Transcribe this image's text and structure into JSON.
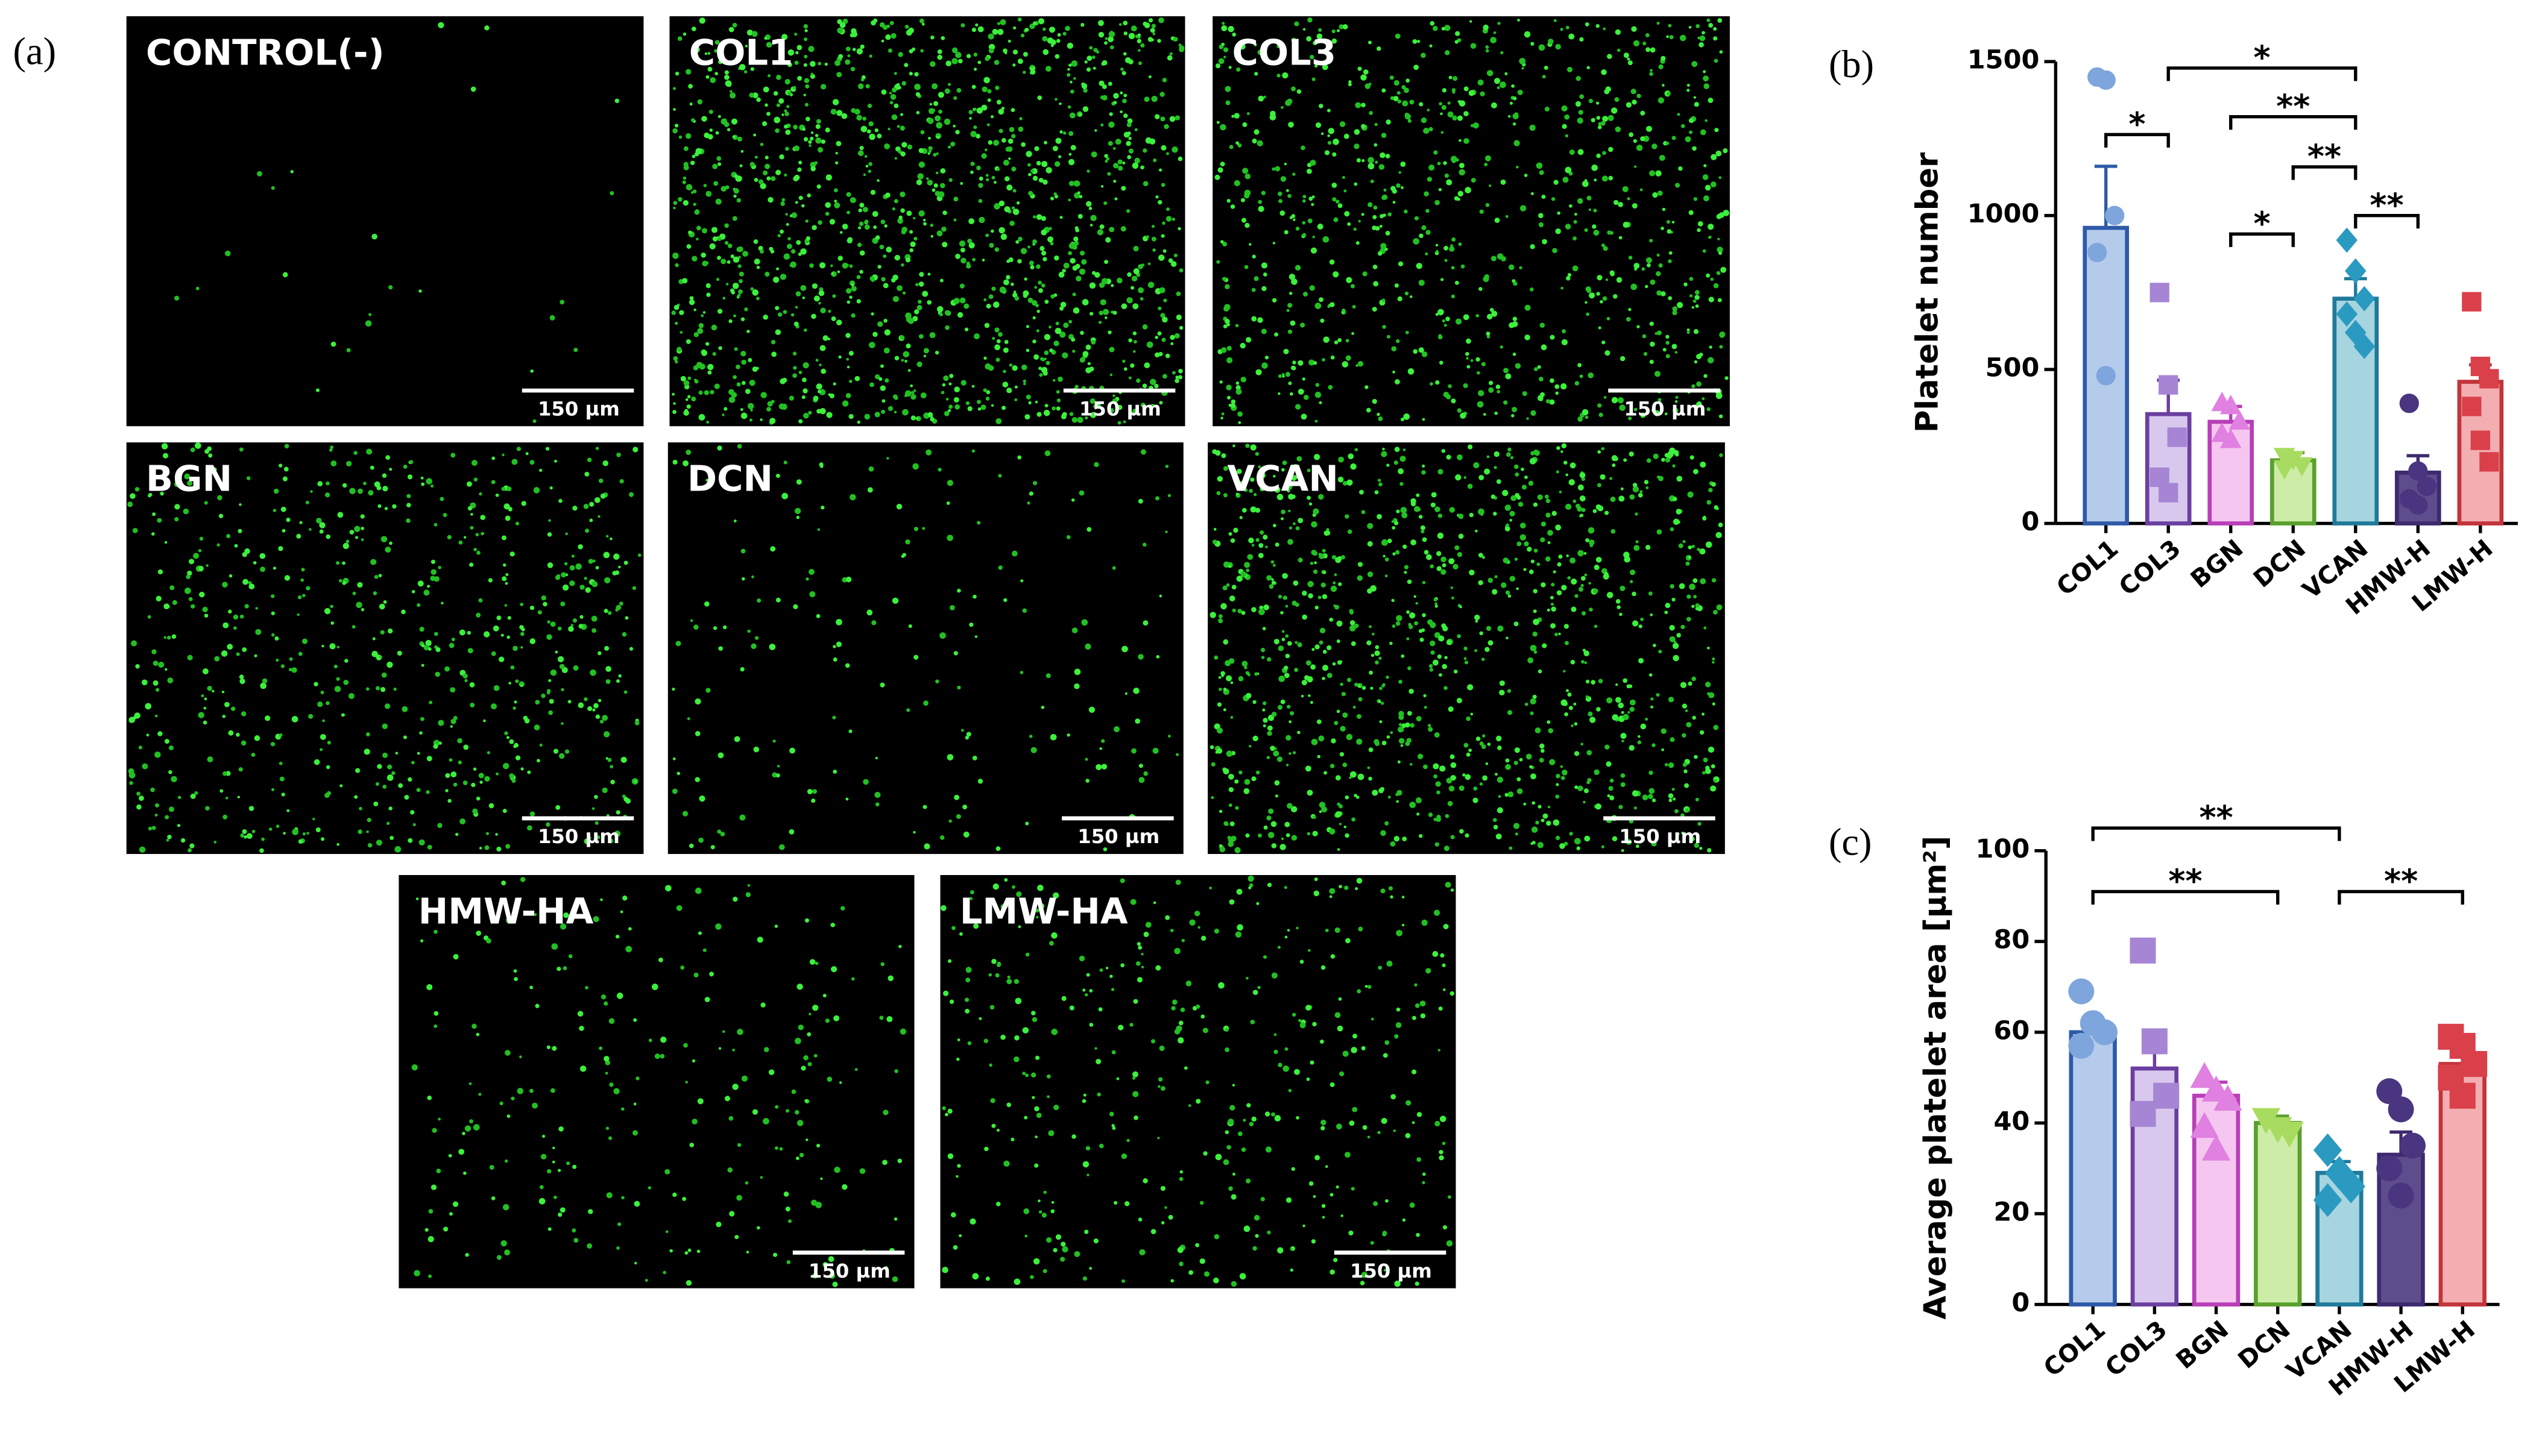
{
  "panel_a": {
    "label": "(a)",
    "images": [
      {
        "label": "CONTROL(-)",
        "scale_bar": "150 µm"
      },
      {
        "label": "COL1",
        "scale_bar": "150 µm"
      },
      {
        "label": "COL3",
        "scale_bar": "150 µm"
      },
      {
        "label": "BGN",
        "scale_bar": "150 µm"
      },
      {
        "label": "DCN",
        "scale_bar": "150 µm"
      },
      {
        "label": "VCAN",
        "scale_bar": "150 µm"
      },
      {
        "label": "HMW-HA",
        "scale_bar": "150 µm"
      },
      {
        "label": "LMW-HA",
        "scale_bar": "150 µm"
      }
    ]
  },
  "chart_data": [
    {
      "type": "bar",
      "label": "(b)",
      "y_label": "Platelet number",
      "categories": [
        "COL1",
        "COL3",
        "BGN",
        "DCN",
        "VCAN",
        "HMW-H",
        "LMW-H"
      ],
      "values": [
        960,
        355,
        330,
        205,
        730,
        165,
        460
      ],
      "errors": [
        200,
        110,
        50,
        25,
        65,
        55,
        55
      ],
      "points": [
        [
          1450,
          1440,
          1000,
          880,
          480
        ],
        [
          750,
          450,
          280,
          150,
          100
        ],
        [
          390,
          380,
          330,
          290,
          270
        ],
        [
          220,
          210,
          190,
          180
        ],
        [
          920,
          820,
          730,
          680,
          620,
          575
        ],
        [
          390,
          170,
          120,
          80,
          60
        ],
        [
          720,
          510,
          470,
          380,
          270,
          200
        ]
      ],
      "colors": [
        "#2e5aa8",
        "#6b3fa0",
        "#b83fb8",
        "#5aa02e",
        "#1f7a9a",
        "#3e2a6e",
        "#c2353b"
      ],
      "fill_colors": [
        "#b5cbec",
        "#d9c8ee",
        "#f5c6f0",
        "#cdeca8",
        "#a6d4df",
        "#5e4d8c",
        "#f2aeb0"
      ],
      "point_colors": [
        "#7ea6dc",
        "#a585d4",
        "#e080e0",
        "#a8dc60",
        "#2a9ac0",
        "#4a3580",
        "#d9404a"
      ],
      "markers": [
        "circle",
        "square",
        "triangle",
        "triangle-down",
        "diamond",
        "circle",
        "square"
      ],
      "ylim": [
        0,
        1500
      ],
      "yticks": [
        0,
        500,
        1000,
        1500
      ],
      "significance": [
        {
          "from": "COL1",
          "to": "COL3",
          "label": "*"
        },
        {
          "from": "COL3",
          "to": "VCAN",
          "label": "*"
        },
        {
          "from": "BGN",
          "to": "VCAN",
          "label": "**"
        },
        {
          "from": "DCN",
          "to": "VCAN",
          "label": "**"
        },
        {
          "from": "BGN",
          "to": "DCN",
          "label": "*"
        },
        {
          "from": "VCAN",
          "to": "HMW-H",
          "label": "**"
        }
      ]
    },
    {
      "type": "bar",
      "label": "(c)",
      "y_label": "Average platelet area  [µm²]",
      "categories": [
        "COL1",
        "COL3",
        "BGN",
        "DCN",
        "VCAN",
        "HMW-H",
        "LMW-H"
      ],
      "values": [
        60,
        52,
        46,
        40,
        29,
        33,
        53
      ],
      "errors": [
        3,
        7,
        3,
        1.5,
        2.5,
        5,
        3
      ],
      "points": [
        [
          69,
          62,
          60,
          57
        ],
        [
          78,
          58,
          46,
          42
        ],
        [
          50,
          47,
          45,
          39,
          34
        ],
        [
          41,
          39,
          38
        ],
        [
          34,
          29,
          26,
          23
        ],
        [
          47,
          43,
          35,
          30,
          24
        ],
        [
          59,
          57,
          53,
          50,
          46
        ]
      ],
      "colors": [
        "#2e5aa8",
        "#6b3fa0",
        "#b83fb8",
        "#5aa02e",
        "#1f7a9a",
        "#3e2a6e",
        "#c2353b"
      ],
      "fill_colors": [
        "#b5cbec",
        "#d9c8ee",
        "#f5c6f0",
        "#cdeca8",
        "#a6d4df",
        "#5e4d8c",
        "#f2aeb0"
      ],
      "point_colors": [
        "#7ea6dc",
        "#a585d4",
        "#e080e0",
        "#a8dc60",
        "#2a9ac0",
        "#4a3580",
        "#d9404a"
      ],
      "markers": [
        "circle",
        "square",
        "triangle",
        "triangle-down",
        "diamond",
        "circle",
        "square"
      ],
      "ylim": [
        0,
        100
      ],
      "yticks": [
        0,
        20,
        40,
        60,
        80,
        100
      ],
      "significance": [
        {
          "from": "COL1",
          "to": "VCAN",
          "label": "**"
        },
        {
          "from": "COL1",
          "to": "DCN",
          "label": "**"
        },
        {
          "from": "VCAN",
          "to": "LMW-H",
          "label": "**"
        }
      ]
    }
  ]
}
